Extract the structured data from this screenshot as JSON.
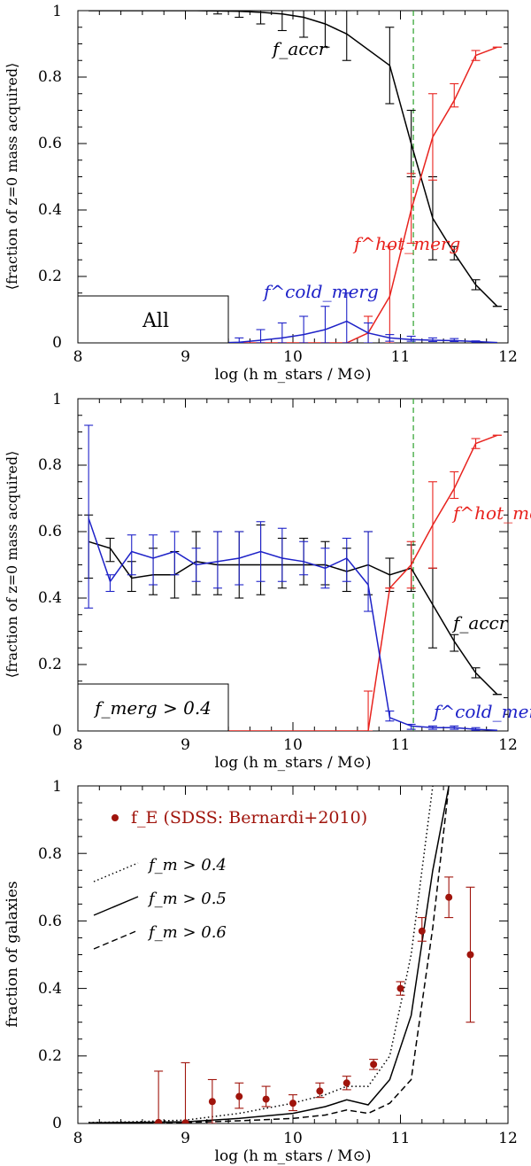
{
  "colors": {
    "accr": "#000000",
    "hot": "#e8231e",
    "cold": "#1e22c8",
    "vline": "#2aa02a",
    "sdss": "#a0140c"
  },
  "chart_data": [
    {
      "type": "line",
      "title": "",
      "xlabel": "log (h m_stars / M⊙)",
      "ylabel": "⟨fraction of z=0 mass acquired⟩",
      "xlim": [
        8,
        12
      ],
      "ylim": [
        0,
        1
      ],
      "xticks": [
        "8",
        "9",
        "10",
        "11",
        "12"
      ],
      "yticks": [
        "0",
        "0.2",
        "0.4",
        "0.6",
        "0.8",
        "1"
      ],
      "vline": 11.12,
      "box_label": "All",
      "annotations": {
        "accr": "f_accr",
        "hot": "f^hot_merg",
        "cold": "f^cold_merg"
      },
      "series": [
        {
          "name": "f_accr",
          "color": "accr",
          "x": [
            8.1,
            8.3,
            8.5,
            8.7,
            8.9,
            9.1,
            9.3,
            9.5,
            9.7,
            9.9,
            10.1,
            10.3,
            10.5,
            10.9,
            11.1,
            11.3,
            11.5,
            11.7,
            11.9
          ],
          "y": [
            1.0,
            1.0,
            1.0,
            1.0,
            1.0,
            1.0,
            0.999,
            0.998,
            0.995,
            0.99,
            0.98,
            0.96,
            0.93,
            0.835,
            0.6,
            0.375,
            0.27,
            0.175,
            0.11
          ],
          "err_x": [
            9.3,
            9.5,
            9.7,
            9.9,
            10.1,
            10.3,
            10.5,
            10.9,
            11.1,
            11.3,
            11.5,
            11.7,
            11.9
          ],
          "err_lo": [
            0.99,
            0.98,
            0.96,
            0.94,
            0.92,
            0.89,
            0.85,
            0.72,
            0.5,
            0.25,
            0.25,
            0.16,
            0.11
          ],
          "err_hi": [
            1.0,
            1.0,
            1.0,
            1.0,
            1.0,
            1.0,
            1.0,
            0.95,
            0.7,
            0.5,
            0.29,
            0.19,
            0.11
          ]
        },
        {
          "name": "f_merg_hot",
          "color": "hot",
          "x": [
            8.0,
            10.5,
            10.7,
            10.9,
            11.1,
            11.3,
            11.5,
            11.7,
            11.9
          ],
          "y": [
            0.0,
            0.0,
            0.03,
            0.14,
            0.4,
            0.62,
            0.73,
            0.865,
            0.89
          ],
          "err_x": [
            10.7,
            10.9,
            11.1,
            11.3,
            11.5,
            11.7,
            11.9
          ],
          "err_lo": [
            0.0,
            0.0,
            0.3,
            0.49,
            0.71,
            0.85,
            0.89
          ],
          "err_hi": [
            0.08,
            0.29,
            0.51,
            0.75,
            0.78,
            0.88,
            0.89
          ]
        },
        {
          "name": "f_merg_cold",
          "color": "cold",
          "x": [
            8.0,
            8.9,
            9.1,
            9.3,
            9.5,
            9.7,
            9.9,
            10.1,
            10.3,
            10.5,
            10.7,
            10.9,
            11.1,
            11.3,
            11.5,
            11.7,
            11.9
          ],
          "y": [
            0.0,
            0.0,
            0.0,
            0.0,
            0.002,
            0.008,
            0.015,
            0.025,
            0.04,
            0.065,
            0.03,
            0.015,
            0.01,
            0.008,
            0.007,
            0.004,
            0.001
          ],
          "err_x": [
            9.1,
            9.3,
            9.5,
            9.7,
            9.9,
            10.1,
            10.3,
            10.5,
            10.7,
            10.9,
            11.1,
            11.3,
            11.5,
            11.7
          ],
          "err_lo": [
            0.0,
            0.0,
            0.0,
            0.0,
            0.0,
            0.0,
            0.0,
            0.0,
            0.0,
            0.005,
            0.005,
            0.004,
            0.004,
            0.002
          ],
          "err_hi": [
            0.003,
            0.008,
            0.015,
            0.04,
            0.06,
            0.08,
            0.11,
            0.15,
            0.06,
            0.025,
            0.02,
            0.015,
            0.013,
            0.006
          ]
        }
      ]
    },
    {
      "type": "line",
      "title": "",
      "xlabel": "log (h m_stars / M⊙)",
      "ylabel": "⟨fraction of z=0 mass acquired⟩",
      "xlim": [
        8,
        12
      ],
      "ylim": [
        0,
        1
      ],
      "xticks": [
        "8",
        "9",
        "10",
        "11",
        "12"
      ],
      "yticks": [
        "0",
        "0.2",
        "0.4",
        "0.6",
        "0.8",
        "1"
      ],
      "vline": 11.12,
      "box_label": "f_merg > 0.4",
      "annotations": {
        "accr": "f_accr",
        "hot": "f^hot_merg",
        "cold": "f^cold_merg"
      },
      "series": [
        {
          "name": "f_accr",
          "color": "accr",
          "x": [
            8.1,
            8.3,
            8.5,
            8.7,
            8.9,
            9.1,
            9.3,
            9.5,
            9.7,
            9.9,
            10.1,
            10.3,
            10.5,
            10.7,
            10.9,
            11.1,
            11.3,
            11.5,
            11.7,
            11.9
          ],
          "y": [
            0.57,
            0.55,
            0.46,
            0.47,
            0.47,
            0.51,
            0.5,
            0.5,
            0.5,
            0.5,
            0.5,
            0.5,
            0.48,
            0.5,
            0.47,
            0.49,
            0.38,
            0.27,
            0.175,
            0.11
          ],
          "err_x": [
            8.1,
            8.3,
            8.5,
            8.7,
            8.9,
            9.1,
            9.3,
            9.5,
            9.7,
            9.9,
            10.1,
            10.3,
            10.5,
            10.7,
            10.9,
            11.1,
            11.3,
            11.5,
            11.7,
            11.9
          ],
          "err_lo": [
            0.46,
            0.51,
            0.42,
            0.41,
            0.4,
            0.41,
            0.41,
            0.4,
            0.41,
            0.43,
            0.44,
            0.44,
            0.42,
            0.41,
            0.42,
            0.42,
            0.25,
            0.24,
            0.16,
            0.11
          ],
          "err_hi": [
            0.65,
            0.58,
            0.51,
            0.55,
            0.54,
            0.6,
            0.6,
            0.6,
            0.62,
            0.58,
            0.58,
            0.57,
            0.55,
            0.6,
            0.52,
            0.56,
            0.49,
            0.29,
            0.19,
            0.11
          ]
        },
        {
          "name": "f_merg_hot",
          "color": "hot",
          "x": [
            8.0,
            10.7,
            10.9,
            11.1,
            11.3,
            11.5,
            11.7,
            11.9
          ],
          "y": [
            0.0,
            0.0,
            0.43,
            0.5,
            0.62,
            0.73,
            0.865,
            0.89
          ],
          "err_x": [
            10.7,
            10.9,
            11.1,
            11.3,
            11.5,
            11.7,
            11.9
          ],
          "err_lo": [
            0.0,
            0.43,
            0.43,
            0.49,
            0.7,
            0.85,
            0.89
          ],
          "err_hi": [
            0.12,
            0.43,
            0.57,
            0.75,
            0.78,
            0.88,
            0.89
          ]
        },
        {
          "name": "f_merg_cold",
          "color": "cold",
          "x": [
            8.1,
            8.3,
            8.5,
            8.7,
            8.9,
            9.1,
            9.3,
            9.5,
            9.7,
            9.9,
            10.1,
            10.3,
            10.5,
            10.7,
            10.9,
            11.1,
            11.3,
            11.5,
            11.7,
            11.9
          ],
          "y": [
            0.64,
            0.45,
            0.54,
            0.52,
            0.54,
            0.5,
            0.51,
            0.52,
            0.54,
            0.52,
            0.51,
            0.49,
            0.52,
            0.44,
            0.04,
            0.015,
            0.01,
            0.01,
            0.005,
            0.002
          ],
          "err_x": [
            8.1,
            8.3,
            8.5,
            8.7,
            8.9,
            9.1,
            9.3,
            9.5,
            9.7,
            9.9,
            10.1,
            10.3,
            10.5,
            10.7,
            10.9,
            11.1,
            11.3,
            11.5,
            11.7
          ],
          "err_lo": [
            0.37,
            0.42,
            0.47,
            0.44,
            0.47,
            0.45,
            0.43,
            0.44,
            0.45,
            0.45,
            0.47,
            0.43,
            0.45,
            0.36,
            0.03,
            0.005,
            0.005,
            0.005,
            0.002
          ],
          "err_hi": [
            0.92,
            0.47,
            0.59,
            0.59,
            0.6,
            0.55,
            0.6,
            0.6,
            0.63,
            0.61,
            0.57,
            0.55,
            0.58,
            0.6,
            0.06,
            0.02,
            0.015,
            0.015,
            0.01
          ]
        }
      ]
    },
    {
      "type": "line",
      "title": "",
      "xlabel": "log (h m_stars / M⊙)",
      "ylabel": "fraction of galaxies",
      "xlim": [
        8,
        12
      ],
      "ylim": [
        0,
        1
      ],
      "xticks": [
        "8",
        "9",
        "10",
        "11",
        "12"
      ],
      "yticks": [
        "0",
        "0.2",
        "0.4",
        "0.6",
        "0.8",
        "1"
      ],
      "legend": [
        {
          "label": "f_E (SDSS: Bernardi+2010)",
          "style": "marker"
        },
        {
          "label": "f_m > 0.4",
          "style": "dotted"
        },
        {
          "label": "f_m > 0.5",
          "style": "solid"
        },
        {
          "label": "f_m > 0.6",
          "style": "dashed"
        }
      ],
      "series": [
        {
          "name": "f_m > 0.4",
          "style": "dotted",
          "x": [
            8.1,
            8.5,
            9.0,
            9.5,
            10.0,
            10.3,
            10.5,
            10.7,
            10.9,
            11.1,
            11.3
          ],
          "y": [
            0.003,
            0.005,
            0.01,
            0.03,
            0.06,
            0.085,
            0.11,
            0.11,
            0.2,
            0.5,
            1.0
          ]
        },
        {
          "name": "f_m > 0.5",
          "style": "solid",
          "x": [
            8.1,
            8.5,
            9.0,
            9.5,
            10.0,
            10.3,
            10.5,
            10.7,
            10.9,
            11.1,
            11.3,
            11.45
          ],
          "y": [
            0.002,
            0.003,
            0.005,
            0.015,
            0.03,
            0.05,
            0.07,
            0.055,
            0.13,
            0.32,
            0.75,
            1.0
          ]
        },
        {
          "name": "f_m > 0.6",
          "style": "dashed",
          "x": [
            8.1,
            8.5,
            9.0,
            9.5,
            10.0,
            10.3,
            10.5,
            10.7,
            10.9,
            11.1,
            11.3,
            11.45
          ],
          "y": [
            0.001,
            0.002,
            0.003,
            0.008,
            0.015,
            0.025,
            0.04,
            0.03,
            0.06,
            0.13,
            0.58,
            1.0
          ]
        }
      ],
      "points": {
        "name": "f_E (SDSS: Bernardi+2010)",
        "x": [
          8.75,
          9.0,
          9.25,
          9.5,
          9.75,
          10.0,
          10.25,
          10.5,
          10.75,
          11.0,
          11.2,
          11.45,
          11.65
        ],
        "y": [
          0.003,
          0.002,
          0.065,
          0.08,
          0.072,
          0.06,
          0.096,
          0.12,
          0.175,
          0.4,
          0.57,
          0.67,
          0.5
        ],
        "err_lo": [
          0.0,
          0.0,
          0.0,
          0.045,
          0.05,
          0.038,
          0.077,
          0.1,
          0.16,
          0.38,
          0.54,
          0.61,
          0.3
        ],
        "err_hi": [
          0.155,
          0.18,
          0.13,
          0.12,
          0.11,
          0.085,
          0.12,
          0.14,
          0.19,
          0.42,
          0.61,
          0.73,
          0.7
        ]
      }
    }
  ]
}
